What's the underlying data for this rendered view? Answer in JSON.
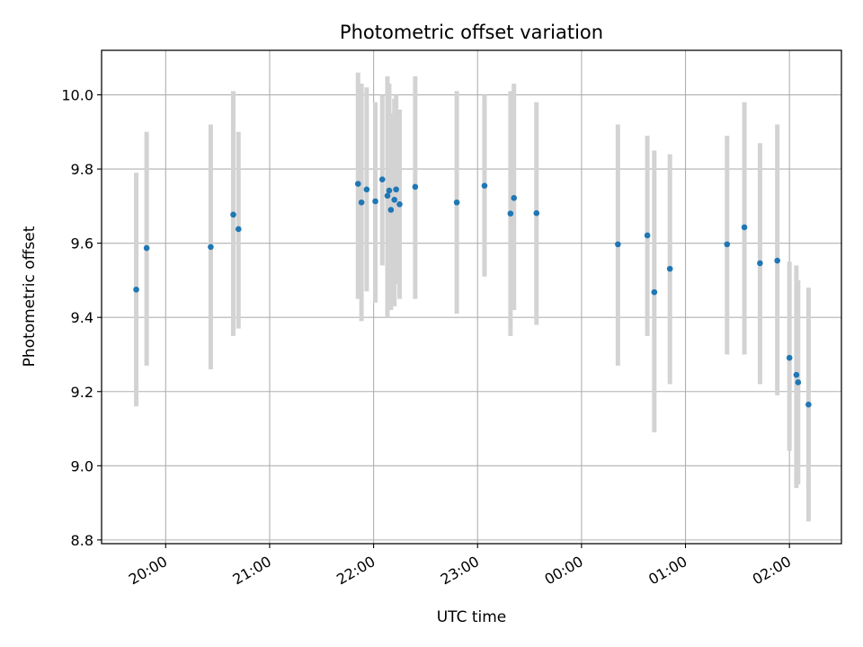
{
  "chart_data": {
    "type": "scatter",
    "title": "Photometric offset variation",
    "xlabel": "UTC time",
    "ylabel": "Photometric offset",
    "x_axis_type": "time",
    "xlim": [
      "19:23",
      "02:30"
    ],
    "ylim": [
      8.79,
      10.12
    ],
    "grid": true,
    "x_ticks": [
      "20:00",
      "21:00",
      "22:00",
      "23:00",
      "00:00",
      "01:00",
      "02:00"
    ],
    "y_ticks": [
      "8.8",
      "9.0",
      "9.2",
      "9.4",
      "9.6",
      "9.8",
      "10.0"
    ],
    "point_color": "#1f77b4",
    "errorbar_color": "#d3d3d3",
    "points": [
      {
        "x": "19:43",
        "y": 9.475,
        "err_low": 9.16,
        "err_high": 9.79
      },
      {
        "x": "19:49",
        "y": 9.587,
        "err_low": 9.27,
        "err_high": 9.9
      },
      {
        "x": "20:26",
        "y": 9.59,
        "err_low": 9.26,
        "err_high": 9.92
      },
      {
        "x": "20:39",
        "y": 9.677,
        "err_low": 9.35,
        "err_high": 10.01
      },
      {
        "x": "20:42",
        "y": 9.638,
        "err_low": 9.37,
        "err_high": 9.9
      },
      {
        "x": "21:51",
        "y": 9.76,
        "err_low": 9.45,
        "err_high": 10.06
      },
      {
        "x": "21:53",
        "y": 9.71,
        "err_low": 9.39,
        "err_high": 10.03
      },
      {
        "x": "21:56",
        "y": 9.745,
        "err_low": 9.47,
        "err_high": 10.02
      },
      {
        "x": "22:01",
        "y": 9.713,
        "err_low": 9.44,
        "err_high": 9.98
      },
      {
        "x": "22:05",
        "y": 9.772,
        "err_low": 9.54,
        "err_high": 10.0
      },
      {
        "x": "22:08",
        "y": 9.728,
        "err_low": 9.4,
        "err_high": 10.05
      },
      {
        "x": "22:09",
        "y": 9.742,
        "err_low": 9.45,
        "err_high": 10.03
      },
      {
        "x": "22:10",
        "y": 9.69,
        "err_low": 9.42,
        "err_high": 9.95
      },
      {
        "x": "22:12",
        "y": 9.717,
        "err_low": 9.43,
        "err_high": 9.99
      },
      {
        "x": "22:13",
        "y": 9.745,
        "err_low": 9.49,
        "err_high": 10.0
      },
      {
        "x": "22:15",
        "y": 9.705,
        "err_low": 9.45,
        "err_high": 9.96
      },
      {
        "x": "22:24",
        "y": 9.752,
        "err_low": 9.45,
        "err_high": 10.05
      },
      {
        "x": "22:48",
        "y": 9.71,
        "err_low": 9.41,
        "err_high": 10.01
      },
      {
        "x": "23:04",
        "y": 9.755,
        "err_low": 9.51,
        "err_high": 10.0
      },
      {
        "x": "23:19",
        "y": 9.68,
        "err_low": 9.35,
        "err_high": 10.01
      },
      {
        "x": "23:21",
        "y": 9.722,
        "err_low": 9.42,
        "err_high": 10.03
      },
      {
        "x": "23:34",
        "y": 9.681,
        "err_low": 9.38,
        "err_high": 9.98
      },
      {
        "x": "00:21",
        "y": 9.597,
        "err_low": 9.27,
        "err_high": 9.92
      },
      {
        "x": "00:38",
        "y": 9.621,
        "err_low": 9.35,
        "err_high": 9.89
      },
      {
        "x": "00:42",
        "y": 9.468,
        "err_low": 9.09,
        "err_high": 9.85
      },
      {
        "x": "00:51",
        "y": 9.531,
        "err_low": 9.22,
        "err_high": 9.84
      },
      {
        "x": "01:24",
        "y": 9.597,
        "err_low": 9.3,
        "err_high": 9.89
      },
      {
        "x": "01:34",
        "y": 9.643,
        "err_low": 9.3,
        "err_high": 9.98
      },
      {
        "x": "01:43",
        "y": 9.546,
        "err_low": 9.22,
        "err_high": 9.87
      },
      {
        "x": "01:53",
        "y": 9.553,
        "err_low": 9.19,
        "err_high": 9.92
      },
      {
        "x": "02:00",
        "y": 9.291,
        "err_low": 9.04,
        "err_high": 9.55
      },
      {
        "x": "02:04",
        "y": 9.245,
        "err_low": 8.94,
        "err_high": 9.54
      },
      {
        "x": "02:05",
        "y": 9.225,
        "err_low": 8.95,
        "err_high": 9.5
      },
      {
        "x": "02:11",
        "y": 9.165,
        "err_low": 8.85,
        "err_high": 9.48
      }
    ]
  }
}
